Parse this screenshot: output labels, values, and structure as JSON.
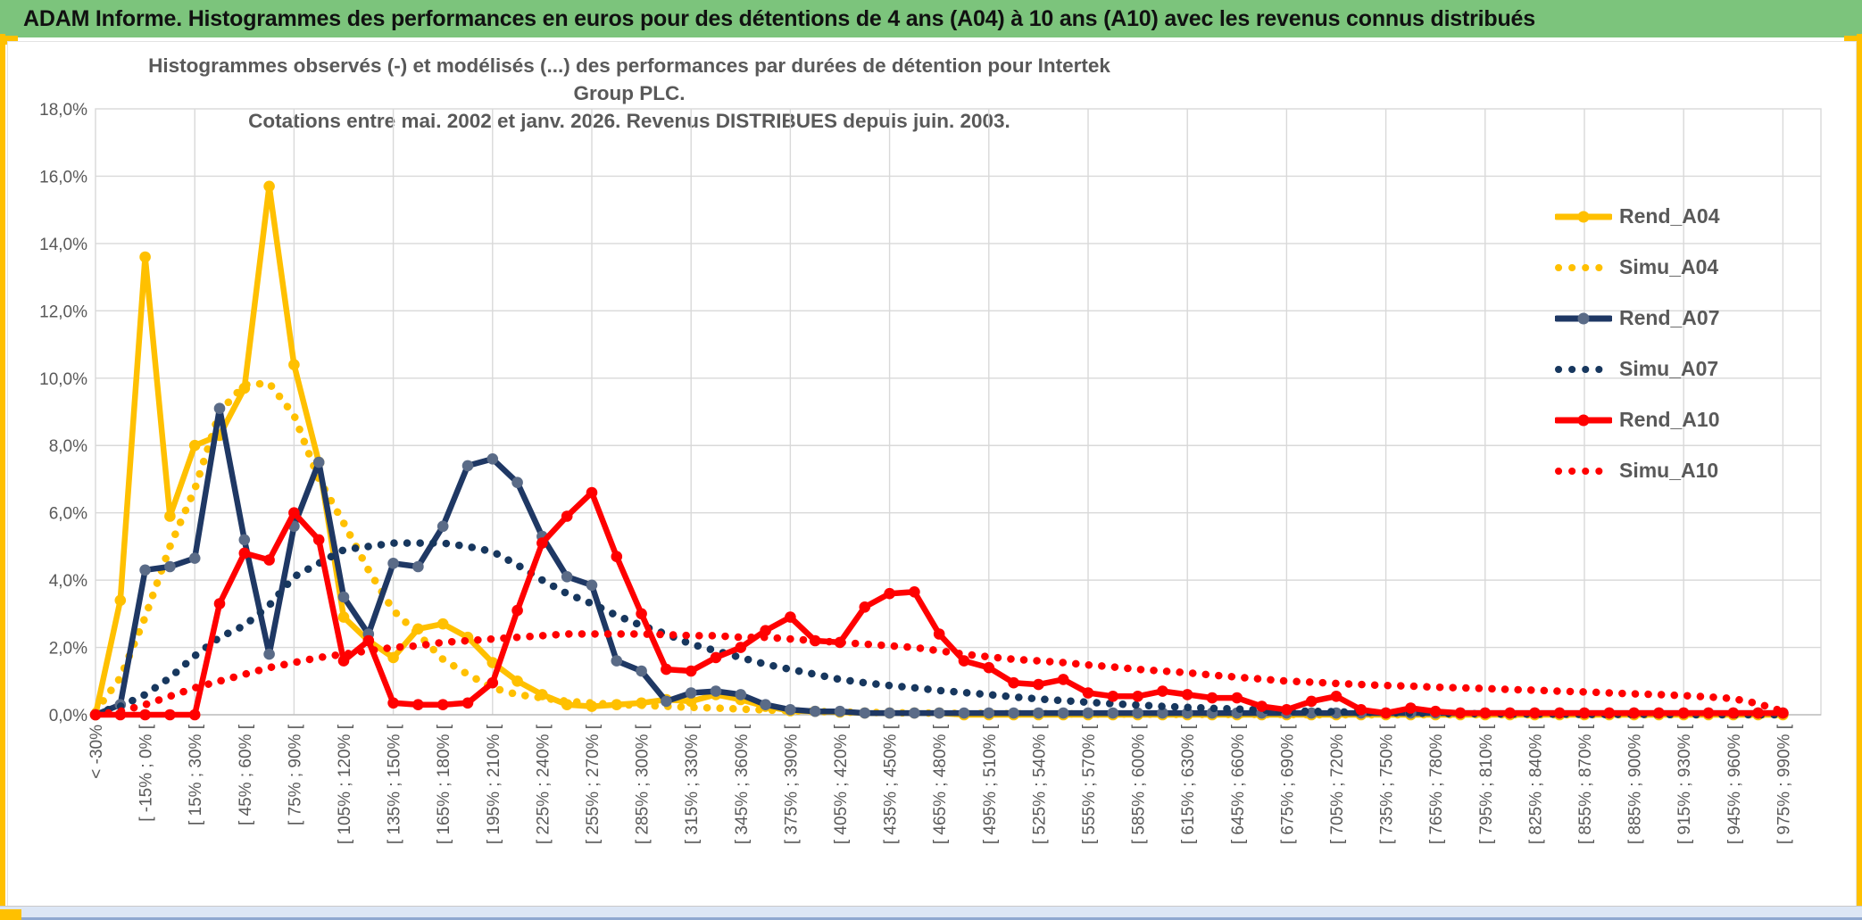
{
  "header": {
    "title": "ADAM Informe. Histogrammes des performances en euros pour des détentions de 4 ans (A04) à 10 ans (A10) avec les revenus connus distribués"
  },
  "colors": {
    "header_bg": "#7CC47C",
    "accent_gold": "#FFC000",
    "footer_band": "#DCE6F5",
    "footer_edge": "#8FA8D0",
    "axis_text": "#595959",
    "gridline": "#D9D9D9",
    "axis_line": "#BFBFBF",
    "series_gold": "#FFC000",
    "series_navy": "#1F3864",
    "series_red": "#FF0000"
  },
  "chart_data": {
    "type": "line",
    "title_line1": "Histogrammes observés (-) et modélisés (...) des performances par durées de détention pour Intertek Group PLC.",
    "title_line2": "Cotations entre mai. 2002 et janv. 2026. Revenus DISTRIBUES depuis juin. 2003.",
    "ylabel": "",
    "xlabel": "",
    "ylim": [
      0,
      18
    ],
    "grid": true,
    "legend_position": "right",
    "y_ticks": [
      "0,0%",
      "2,0%",
      "4,0%",
      "6,0%",
      "8,0%",
      "10,0%",
      "12,0%",
      "14,0%",
      "16,0%",
      "18,0%"
    ],
    "categories": [
      "< -30%",
      "",
      "[ -15% ; 0% [",
      "",
      "[ 15% ; 30% [",
      "",
      "[ 45% ; 60% [",
      "",
      "[ 75% ; 90% [",
      "",
      "[ 105% ; 120% [",
      "",
      "[ 135% ; 150% [",
      "",
      "[ 165% ; 180% [",
      "",
      "[ 195% ; 210% [",
      "",
      "[ 225% ; 240% [",
      "",
      "[ 255% ; 270% [",
      "",
      "[ 285% ; 300% [",
      "",
      "[ 315% ; 330% [",
      "",
      "[ 345% ; 360% [",
      "",
      "[ 375% ; 390% [",
      "",
      "[ 405% ; 420% [",
      "",
      "[ 435% ; 450% [",
      "",
      "[ 465% ; 480% [",
      "",
      "[ 495% ; 510% [",
      "",
      "[ 525% ; 540% [",
      "",
      "[ 555% ; 570% [",
      "",
      "[ 585% ; 600% [",
      "",
      "[ 615% ; 630% [",
      "",
      "[ 645% ; 660% [",
      "",
      "[ 675% ; 690% [",
      "",
      "[ 705% ; 720% [",
      "",
      "[ 735% ; 750% [",
      "",
      "[ 765% ; 780% [",
      "",
      "[ 795% ; 810% [",
      "",
      "[ 825% ; 840% [",
      "",
      "[ 855% ; 870% [",
      "",
      "[ 885% ; 900% [",
      "",
      "[ 915% ; 930% [",
      "",
      "[ 945% ; 960% [",
      "",
      "[ 975% ; 990% ["
    ],
    "series": [
      {
        "name": "Rend_A04",
        "style": "solid",
        "color": "#FFC000",
        "marker_color": "#FFC000",
        "values": [
          0,
          3.4,
          13.6,
          5.9,
          8.0,
          8.3,
          9.7,
          15.7,
          10.4,
          7.5,
          2.9,
          2.2,
          1.7,
          2.55,
          2.7,
          2.3,
          1.55,
          1.0,
          0.6,
          0.3,
          0.25,
          0.3,
          0.35,
          0.45,
          0.4,
          0.6,
          0.45,
          0.25,
          0.12,
          0.1,
          0.08,
          0.05,
          0.05,
          0.05,
          0.05,
          0,
          0,
          0,
          0,
          0,
          0,
          0,
          0,
          0,
          0,
          0,
          0,
          0,
          0,
          0,
          0,
          0,
          0,
          0,
          0,
          0,
          0,
          0,
          0,
          0,
          0,
          0,
          0,
          0,
          0,
          0,
          0,
          0,
          0
        ]
      },
      {
        "name": "Simu_A04",
        "style": "dotted",
        "color": "#FFC000",
        "values": [
          0.1,
          1.1,
          2.9,
          5.0,
          6.7,
          9.0,
          9.8,
          9.85,
          8.9,
          7.0,
          5.7,
          4.3,
          3.1,
          2.4,
          1.65,
          1.2,
          0.8,
          0.6,
          0.5,
          0.4,
          0.35,
          0.3,
          0.28,
          0.25,
          0.22,
          0.2,
          0.17,
          0.14,
          0.12,
          0.1,
          0.08,
          0.07,
          0.06,
          0.05,
          0.05,
          0.04,
          0.04,
          0.03,
          0.03,
          0.03,
          0.02,
          0.02,
          0.02,
          0.01,
          0.01,
          0.01,
          0.01,
          0.01,
          0.01,
          0,
          0,
          0,
          0,
          0,
          0,
          0,
          0,
          0,
          0,
          0,
          0,
          0,
          0,
          0,
          0,
          0,
          0,
          0,
          0
        ]
      },
      {
        "name": "Rend_A07",
        "style": "solid",
        "color": "#1F3864",
        "marker_color": "#5A6B87",
        "values": [
          0,
          0.3,
          4.3,
          4.4,
          4.65,
          9.1,
          5.2,
          1.8,
          5.6,
          7.5,
          3.5,
          2.4,
          4.5,
          4.4,
          5.6,
          7.4,
          7.6,
          6.9,
          5.3,
          4.1,
          3.85,
          1.6,
          1.3,
          0.4,
          0.65,
          0.7,
          0.6,
          0.3,
          0.15,
          0.1,
          0.1,
          0.05,
          0.05,
          0.05,
          0.05,
          0.05,
          0.05,
          0.05,
          0.05,
          0.05,
          0.05,
          0.05,
          0.05,
          0.05,
          0.05,
          0.05,
          0.05,
          0.05,
          0.05,
          0.05,
          0.05,
          0.05,
          0.05,
          0.05,
          0.05,
          0.05,
          0.05,
          0.05,
          0.05,
          0.05,
          0.05,
          0.05,
          0.05,
          0.05,
          0.05,
          0.05,
          0.05,
          0.05,
          0.05
        ]
      },
      {
        "name": "Simu_A07",
        "style": "dotted",
        "color": "#17375E",
        "values": [
          0.05,
          0.25,
          0.6,
          1.1,
          1.75,
          2.3,
          2.65,
          3.25,
          4.1,
          4.5,
          4.9,
          5.0,
          5.1,
          5.1,
          5.1,
          5.0,
          4.85,
          4.45,
          4.0,
          3.6,
          3.3,
          2.95,
          2.65,
          2.4,
          2.1,
          1.9,
          1.7,
          1.5,
          1.35,
          1.2,
          1.05,
          0.95,
          0.87,
          0.8,
          0.72,
          0.66,
          0.6,
          0.53,
          0.47,
          0.42,
          0.37,
          0.33,
          0.29,
          0.25,
          0.22,
          0.19,
          0.17,
          0.14,
          0.12,
          0.1,
          0.09,
          0.07,
          0.06,
          0.05,
          0.04,
          0.03,
          0.03,
          0.02,
          0.02,
          0.02,
          0.01,
          0.01,
          0.01,
          0.01,
          0,
          0,
          0,
          0,
          0
        ]
      },
      {
        "name": "Rend_A10",
        "style": "solid",
        "color": "#FF0000",
        "marker_color": "#FF0000",
        "values": [
          0,
          0,
          0,
          0,
          0,
          3.3,
          4.8,
          4.6,
          6.0,
          5.2,
          1.6,
          2.2,
          0.35,
          0.3,
          0.3,
          0.35,
          0.95,
          3.1,
          5.1,
          5.9,
          6.6,
          4.7,
          3.0,
          1.35,
          1.3,
          1.7,
          2.0,
          2.5,
          2.9,
          2.2,
          2.15,
          3.2,
          3.6,
          3.65,
          2.4,
          1.6,
          1.4,
          0.95,
          0.9,
          1.05,
          0.65,
          0.55,
          0.55,
          0.7,
          0.6,
          0.5,
          0.5,
          0.25,
          0.15,
          0.4,
          0.55,
          0.15,
          0.05,
          0.2,
          0.1,
          0.05,
          0.05,
          0.05,
          0.05,
          0.05,
          0.05,
          0.05,
          0.05,
          0.05,
          0.05,
          0.05,
          0.05,
          0.05,
          0.05
        ]
      },
      {
        "name": "Simu_A10",
        "style": "dotted",
        "color": "#FF0000",
        "values": [
          0,
          0.1,
          0.3,
          0.55,
          0.8,
          1.0,
          1.2,
          1.4,
          1.55,
          1.7,
          1.8,
          1.9,
          2.0,
          2.05,
          2.15,
          2.2,
          2.25,
          2.3,
          2.35,
          2.4,
          2.4,
          2.4,
          2.4,
          2.38,
          2.35,
          2.35,
          2.3,
          2.3,
          2.25,
          2.2,
          2.15,
          2.1,
          2.05,
          2.0,
          1.9,
          1.8,
          1.72,
          1.65,
          1.6,
          1.55,
          1.48,
          1.42,
          1.35,
          1.3,
          1.25,
          1.18,
          1.12,
          1.06,
          1.0,
          0.97,
          0.93,
          0.9,
          0.87,
          0.85,
          0.82,
          0.8,
          0.78,
          0.75,
          0.73,
          0.7,
          0.68,
          0.65,
          0.62,
          0.6,
          0.57,
          0.53,
          0.48,
          0.33,
          0.1
        ]
      }
    ]
  }
}
